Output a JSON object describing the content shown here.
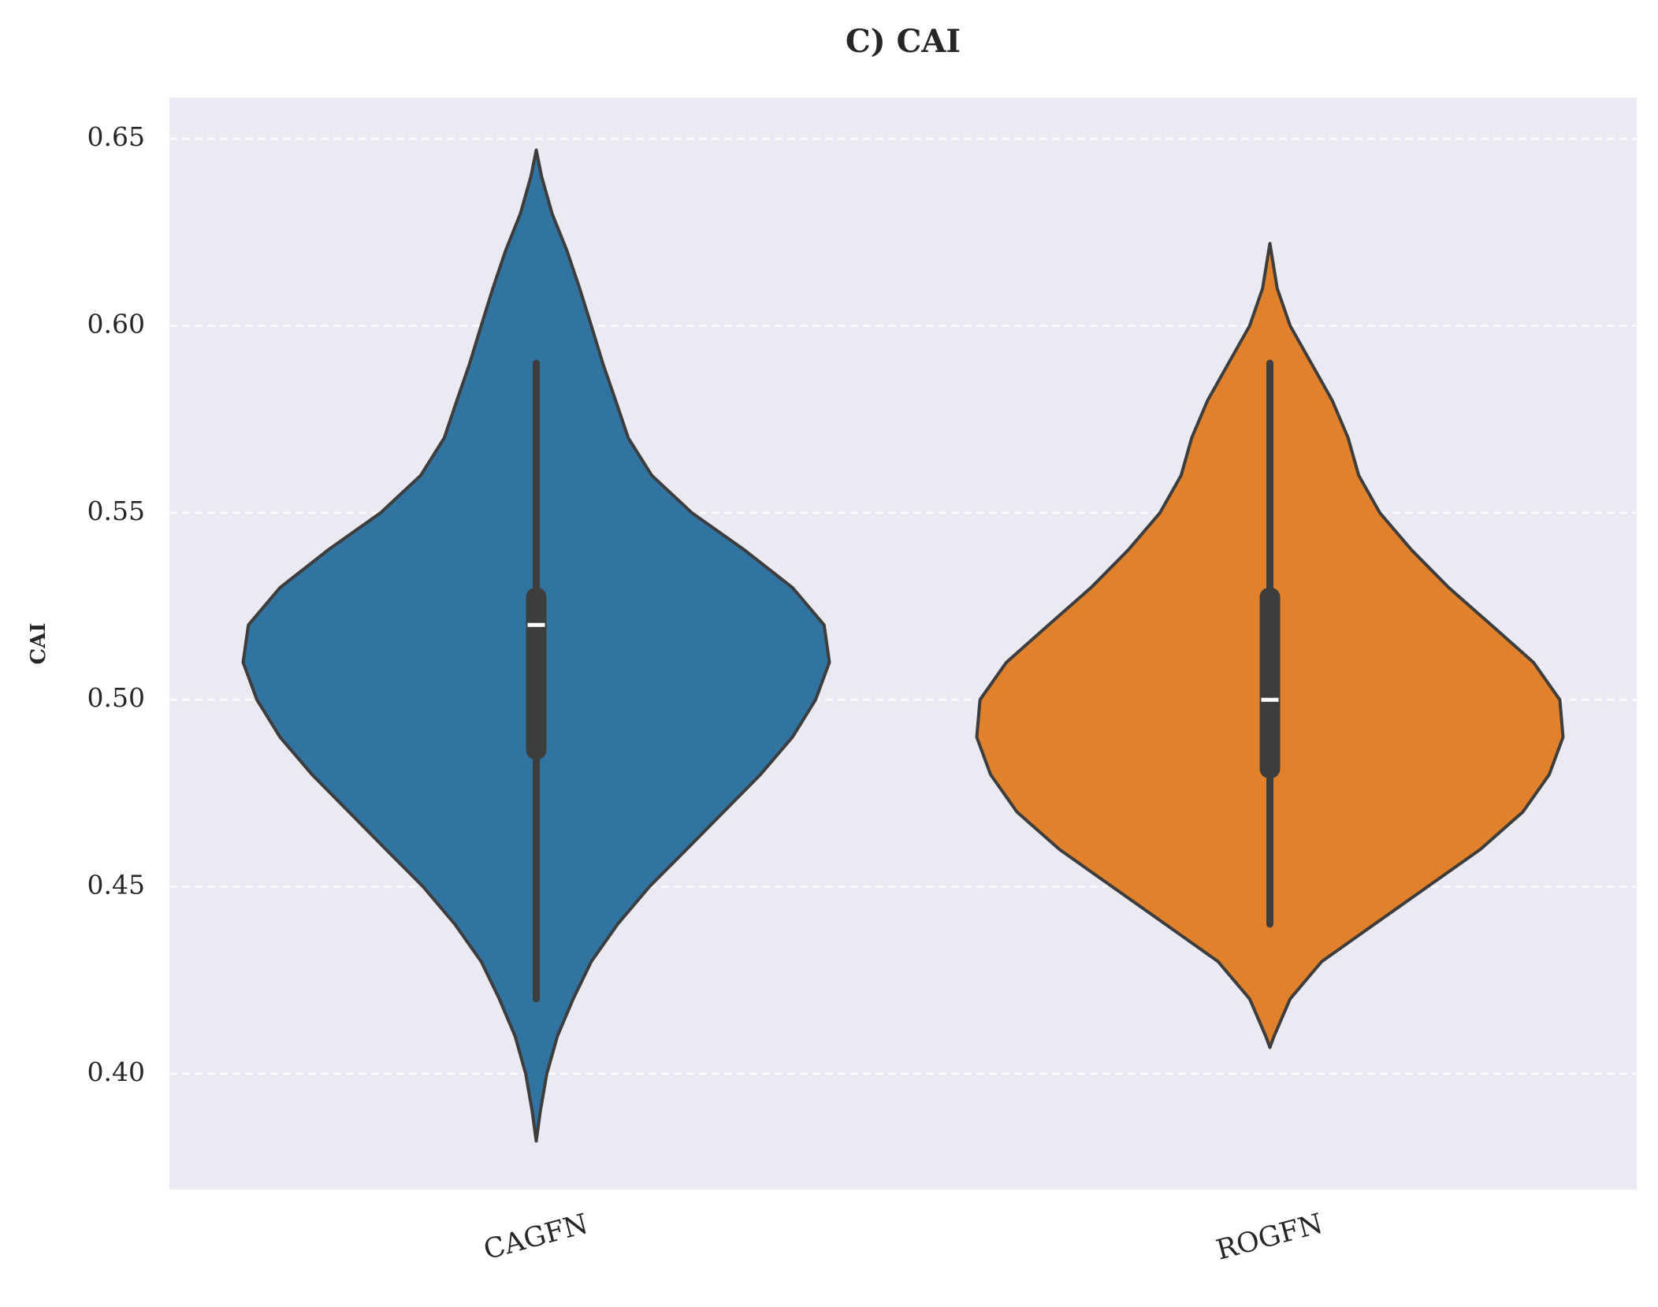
{
  "chart_data": {
    "type": "violin",
    "title": "C) CAI",
    "y_label": "CAI",
    "categories": [
      "CAGFN",
      "ROGFN"
    ],
    "ylim": [
      0.369,
      0.661
    ],
    "yticks": [
      {
        "value": 0.4,
        "label": "0.40"
      },
      0.45,
      {
        "value": 0.5,
        "label": "0.50"
      },
      0.55,
      {
        "value": 0.6,
        "label": "0.60"
      },
      0.65
    ],
    "grid": true,
    "series": [
      {
        "name": "CAGFN",
        "color": "#3274a1",
        "kde_y": [
          0.382,
          0.39,
          0.4,
          0.41,
          0.42,
          0.43,
          0.44,
          0.45,
          0.46,
          0.47,
          0.48,
          0.49,
          0.5,
          0.51,
          0.52,
          0.53,
          0.54,
          0.55,
          0.56,
          0.57,
          0.58,
          0.59,
          0.6,
          0.61,
          0.62,
          0.63,
          0.64,
          0.647
        ],
        "kde_width": [
          0,
          1.4,
          3.6,
          7.2,
          12.6,
          18.8,
          27.8,
          38.6,
          51.3,
          63.9,
          76.5,
          87.4,
          95.3,
          100,
          98.2,
          87.4,
          71.1,
          53.1,
          39.4,
          31.4,
          27.1,
          22.7,
          18.8,
          14.8,
          10.5,
          5.4,
          1.8,
          0
        ],
        "whisker_low": 0.42,
        "q1": 0.484,
        "median": 0.52,
        "q3": 0.53,
        "whisker_high": 0.59
      },
      {
        "name": "ROGFN",
        "color": "#e1812c",
        "kde_y": [
          0.407,
          0.41,
          0.42,
          0.43,
          0.44,
          0.45,
          0.46,
          0.47,
          0.48,
          0.49,
          0.5,
          0.51,
          0.52,
          0.53,
          0.54,
          0.55,
          0.56,
          0.57,
          0.58,
          0.59,
          0.6,
          0.61,
          0.622
        ],
        "kde_width": [
          0,
          1.4,
          6.9,
          17.7,
          35.7,
          53.8,
          71.8,
          86.3,
          95.3,
          100,
          98.9,
          89.9,
          75.5,
          61,
          48.4,
          37.5,
          30.3,
          26.7,
          21.3,
          14.1,
          6.9,
          2.5,
          0
        ],
        "whisker_low": 0.44,
        "q1": 0.479,
        "median": 0.5,
        "q3": 0.53,
        "whisker_high": 0.59
      }
    ]
  }
}
